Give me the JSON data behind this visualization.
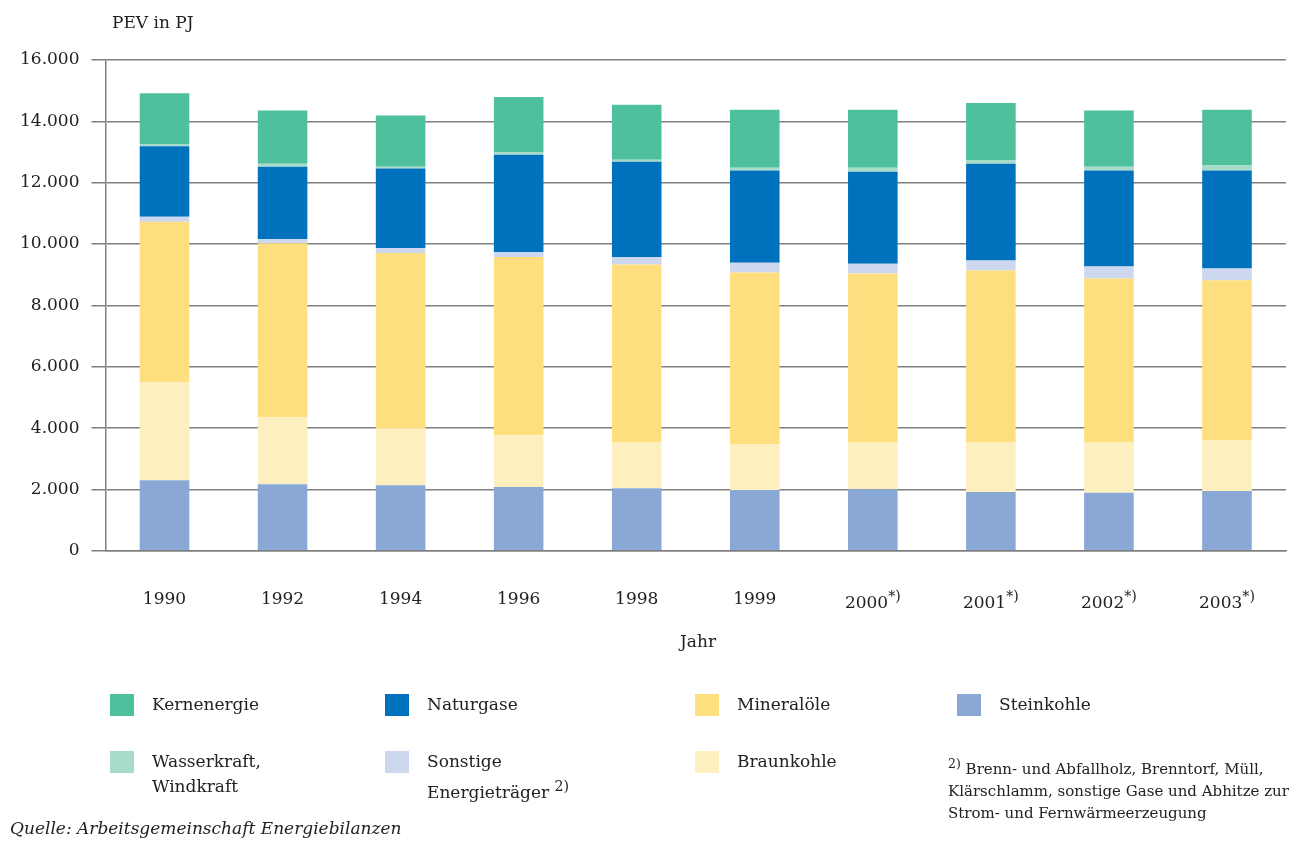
{
  "chart_data": {
    "type": "bar",
    "stacked": true,
    "ylabel": "PEV in PJ",
    "xlabel": "Jahr",
    "categories": [
      "1990",
      "1992",
      "1994",
      "1996",
      "1998",
      "1999",
      "2000$^{*)}$",
      "2001$^{*)}$",
      "2002$^{*)}$",
      "2003$^{*)}$"
    ],
    "series": [
      {
        "name": "Steinkohle",
        "color": "#8aa8d6",
        "values": [
          2300,
          2170,
          2140,
          2080,
          2040,
          1980,
          2010,
          1920,
          1890,
          1950
        ]
      },
      {
        "name": "Braunkohle",
        "color": "#fdefbf",
        "values": [
          3200,
          2180,
          1850,
          1690,
          1510,
          1500,
          1540,
          1630,
          1660,
          1660
        ]
      },
      {
        "name": "Mineralöle",
        "color": "#fddf80",
        "values": [
          5230,
          5680,
          5720,
          5810,
          5780,
          5590,
          5490,
          5590,
          5330,
          5210
        ]
      },
      {
        "name": "Sonstige Energieträger $^{2)}$",
        "color": "#cdd8ee",
        "values": [
          160,
          130,
          160,
          160,
          250,
          320,
          320,
          320,
          390,
          380
        ]
      },
      {
        "name": "Naturgase",
        "color": "#0071bc",
        "values": [
          2300,
          2360,
          2590,
          3170,
          3100,
          3010,
          3000,
          3160,
          3130,
          3200
        ]
      },
      {
        "name": "Wasserkraft, Windkraft",
        "color": "#a8dcc8",
        "values": [
          70,
          100,
          60,
          90,
          70,
          90,
          130,
          100,
          120,
          160
        ]
      },
      {
        "name": "Kernenergie",
        "color": "#4fc09e",
        "values": [
          1660,
          1730,
          1670,
          1790,
          1790,
          1890,
          1890,
          1880,
          1830,
          1820
        ]
      }
    ],
    "ylim": [
      0,
      16000
    ],
    "yticks": [
      0,
      {
        "value": 2000,
        "label": "2.000"
      },
      {
        "value": 4000,
        "label": "4.000"
      },
      {
        "value": 6000,
        "label": "6.000"
      },
      {
        "value": 8000,
        "label": "8.000"
      },
      {
        "value": 10000,
        "label": "10.000"
      },
      {
        "value": 12000,
        "label": "12.000"
      },
      {
        "value": 14000,
        "label": "14.000"
      },
      {
        "value": 16000,
        "label": "16.000"
      }
    ],
    "grid": "y",
    "legend": "bottom",
    "annotations": [
      "Quelle: Arbeitsgemeinschaft Energiebilanzen",
      "$^{2)}$ Brenn- und Abfallholz, Brenntorf, Müll, Klärschlamm, sonstige Gase und Abhitze zur Strom- und Fernwärmeerzeugung"
    ]
  }
}
